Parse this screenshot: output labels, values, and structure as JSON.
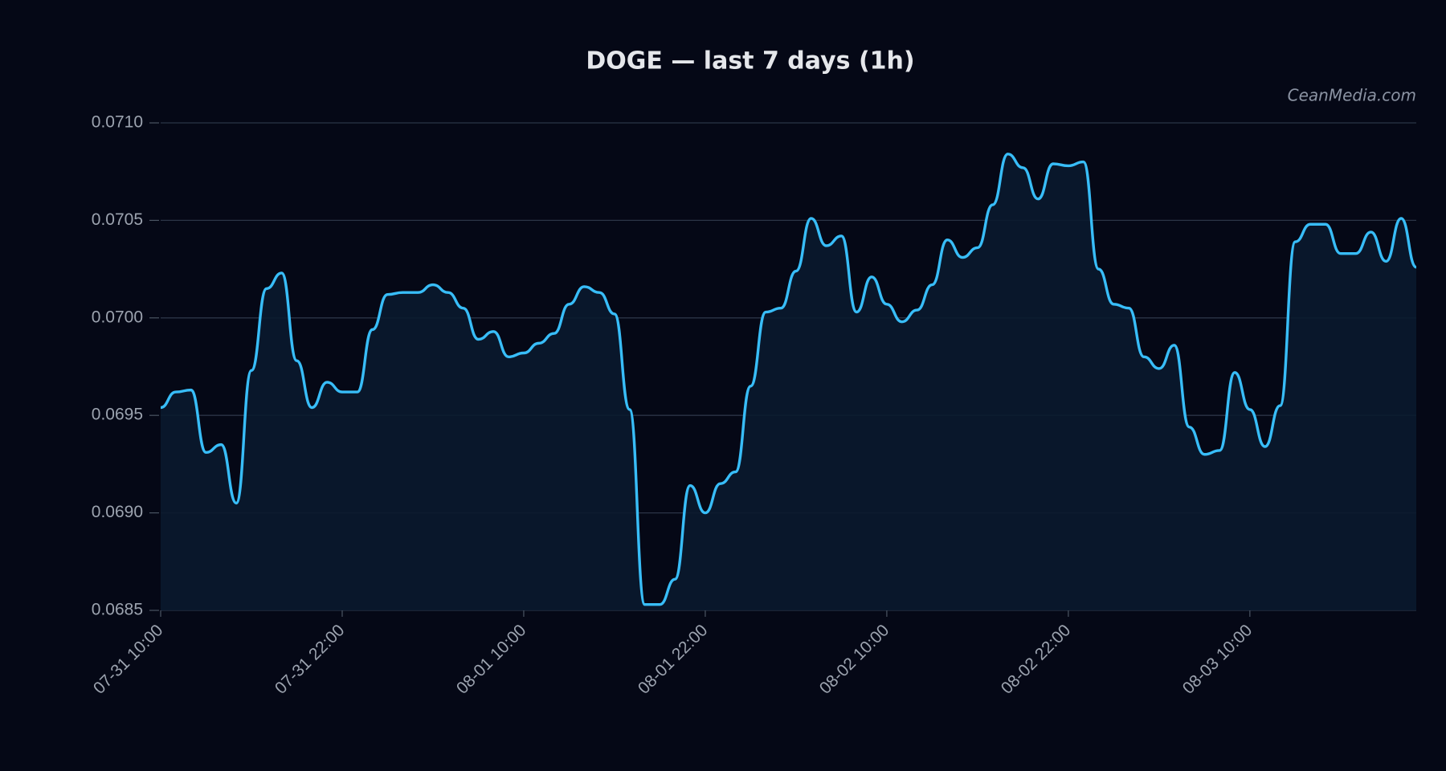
{
  "chart_data": {
    "type": "line",
    "title": "DOGE — last 7 days (1h)",
    "watermark": "CeanMedia.com",
    "categories": [
      "07-31 10:00",
      null,
      null,
      null,
      null,
      null,
      null,
      null,
      null,
      null,
      null,
      null,
      "07-31 22:00",
      null,
      null,
      null,
      null,
      null,
      null,
      null,
      null,
      null,
      null,
      null,
      "08-01 10:00",
      null,
      null,
      null,
      null,
      null,
      null,
      null,
      null,
      null,
      null,
      null,
      "08-01 22:00",
      null,
      null,
      null,
      null,
      null,
      null,
      null,
      null,
      null,
      null,
      null,
      "08-02 10:00",
      null,
      null,
      null,
      null,
      null,
      null,
      null,
      null,
      null,
      null,
      null,
      "08-02 22:00",
      null,
      null,
      null,
      null,
      null,
      null,
      null,
      null,
      null,
      null,
      null,
      "08-03 10:00",
      null,
      null,
      null,
      null,
      null,
      null,
      null,
      null,
      null,
      null,
      null
    ],
    "series": [
      {
        "name": "DOGE",
        "color": "#38bdf8",
        "values": [
          0.06954,
          0.06962,
          0.06963,
          0.06931,
          0.06935,
          0.06905,
          0.06973,
          0.07015,
          0.07023,
          0.06978,
          0.06954,
          0.06967,
          0.06962,
          0.06962,
          0.06994,
          0.07012,
          0.07013,
          0.07013,
          0.07017,
          0.07013,
          0.07005,
          0.06989,
          0.06993,
          0.0698,
          0.06982,
          0.06987,
          0.06992,
          0.07007,
          0.07016,
          0.07013,
          0.07002,
          0.06953,
          0.06853,
          0.06853,
          0.06866,
          0.06914,
          0.069,
          0.06915,
          0.06921,
          0.06965,
          0.07003,
          0.07005,
          0.07024,
          0.07051,
          0.07037,
          0.07042,
          0.07003,
          0.07021,
          0.07007,
          0.06998,
          0.07004,
          0.07017,
          0.0704,
          0.07031,
          0.07036,
          0.07058,
          0.07084,
          0.07077,
          0.07061,
          0.07079,
          0.07078,
          0.0708,
          0.07025,
          0.07007,
          0.07005,
          0.0698,
          0.06974,
          0.06986,
          0.06944,
          0.0693,
          0.06932,
          0.06972,
          0.06953,
          0.06934,
          0.06955,
          0.07039,
          0.07048,
          0.07048,
          0.07033,
          0.07033,
          0.07044,
          0.07029,
          0.07051,
          0.07026
        ]
      }
    ],
    "ylim": [
      0.0685,
      0.071
    ],
    "yticks": [
      0.0685,
      {
        "value": 0.069,
        "label": "0.0690"
      },
      0.0695,
      {
        "value": 0.07,
        "label": "0.0700"
      },
      0.0705,
      {
        "value": 0.071,
        "label": "0.0710"
      }
    ],
    "grid": true,
    "area_fill": "#0a1a2e"
  }
}
